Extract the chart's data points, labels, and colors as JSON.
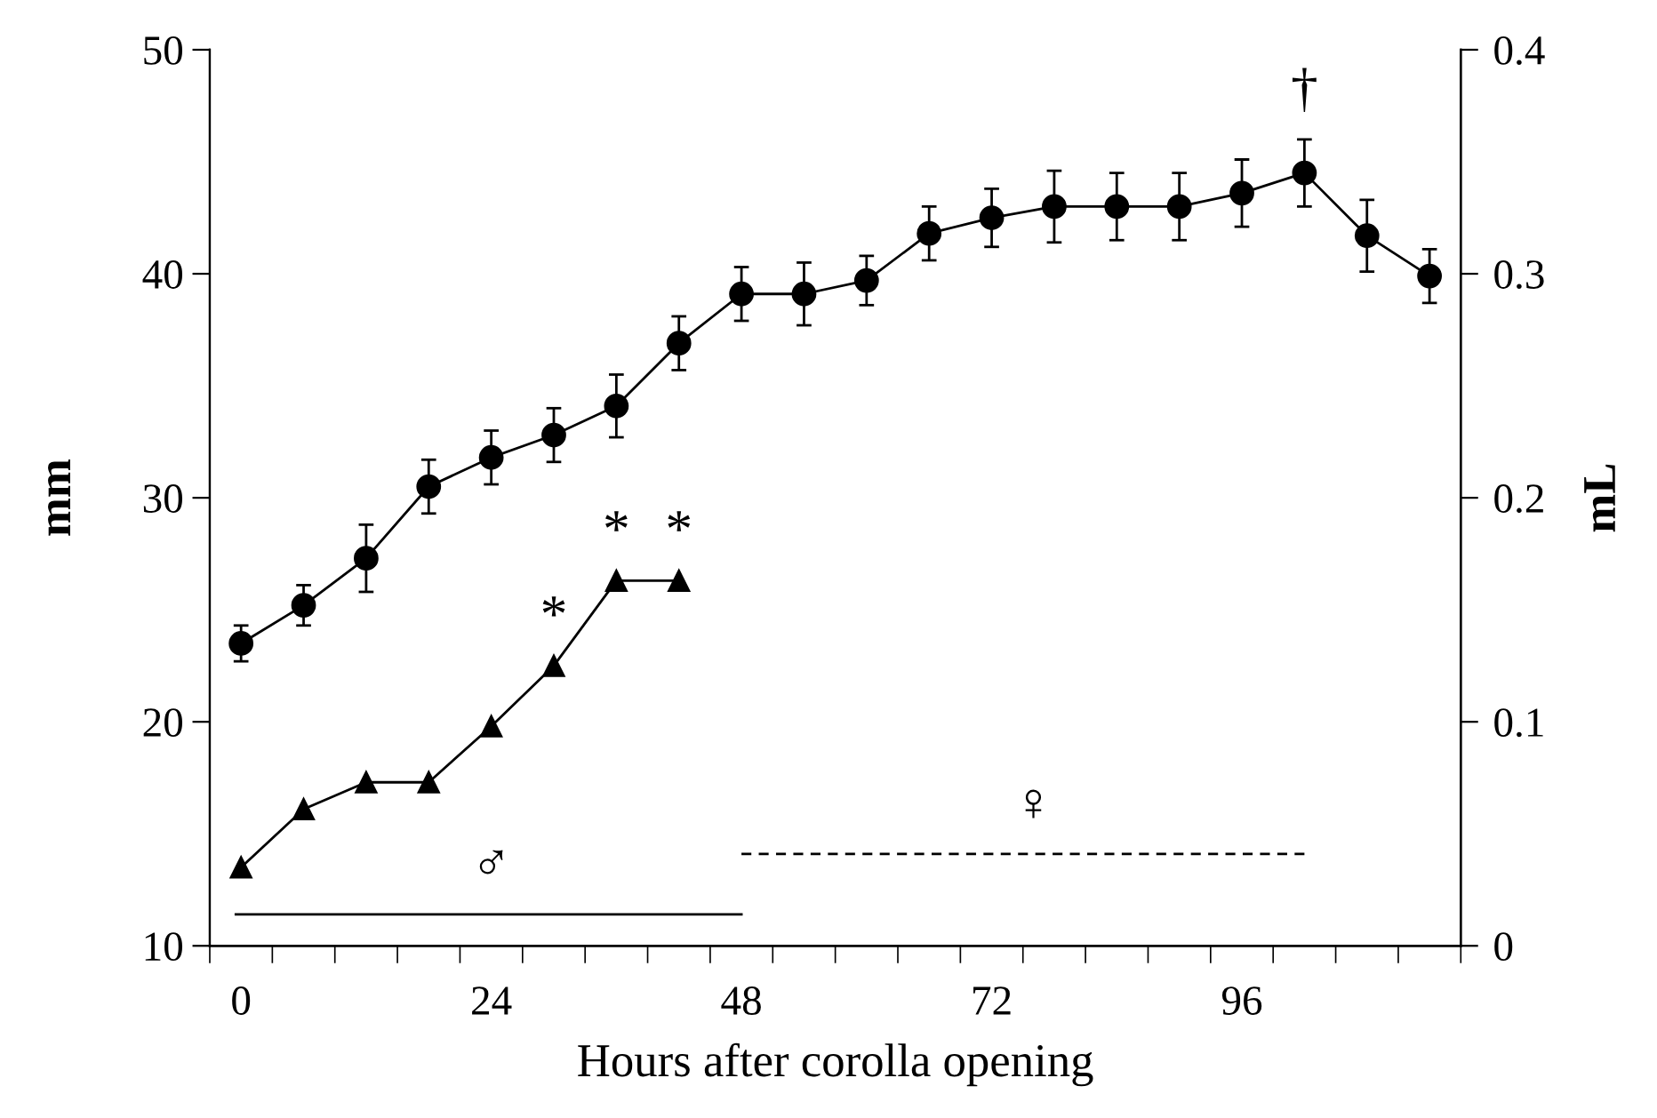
{
  "chart_data": {
    "type": "line",
    "xlabel": "Hours after corolla opening",
    "ylabel": "mm",
    "y2label": "mL",
    "x": [
      0,
      6,
      12,
      18,
      24,
      30,
      36,
      42,
      48,
      54,
      60,
      66,
      72,
      78,
      84,
      90,
      96,
      102,
      108,
      114
    ],
    "xlim": [
      -3,
      117
    ],
    "xticks": [
      {
        "value": -3,
        "label": null
      },
      {
        "value": 3,
        "label": null
      },
      {
        "value": 9,
        "label": null
      },
      {
        "value": 15,
        "label": null
      },
      {
        "value": 21,
        "label": null
      },
      {
        "value": 27,
        "label": null
      },
      {
        "value": 33,
        "label": null
      },
      {
        "value": 39,
        "label": null
      },
      {
        "value": 45,
        "label": null
      },
      {
        "value": 51,
        "label": null
      },
      {
        "value": 57,
        "label": null
      },
      {
        "value": 63,
        "label": null
      },
      {
        "value": 69,
        "label": null
      },
      {
        "value": 75,
        "label": null
      },
      {
        "value": 81,
        "label": null
      },
      {
        "value": 87,
        "label": null
      },
      {
        "value": 93,
        "label": null
      },
      {
        "value": 99,
        "label": null
      },
      {
        "value": 105,
        "label": null
      },
      {
        "value": 111,
        "label": null
      },
      {
        "value": 117,
        "label": null
      },
      0,
      24,
      48,
      72,
      96
    ],
    "ylim": [
      10,
      50
    ],
    "yticks": [
      10,
      20,
      30,
      40,
      50
    ],
    "y2lim": [
      0,
      0.4
    ],
    "y2ticks": [
      0,
      0.1,
      0.2,
      0.3,
      0.4
    ],
    "grid": false,
    "legend": false,
    "series": [
      {
        "color": "#000000",
        "marker": "circle",
        "values": [
          23.5,
          25.2,
          27.3,
          30.5,
          31.8,
          32.8,
          34.1,
          36.9,
          39.1,
          39.1,
          39.7,
          41.8,
          42.5,
          43.0,
          43.0,
          43.0,
          43.6,
          44.5,
          41.7,
          39.9
        ],
        "errors": [
          0.8,
          0.9,
          1.5,
          1.2,
          1.2,
          1.2,
          1.4,
          1.2,
          1.2,
          1.4,
          1.1,
          1.2,
          1.3,
          1.6,
          1.5,
          1.5,
          1.5,
          1.5,
          1.6,
          1.2
        ]
      },
      {
        "color": "#000000",
        "marker": "triangle",
        "axis": "y2",
        "x": [
          0,
          6,
          12,
          18,
          24,
          30,
          36,
          42
        ],
        "values": [
          0.035,
          0.061,
          0.073,
          0.073,
          0.098,
          0.125,
          0.163,
          0.163
        ]
      },
      {
        "color": "#000000",
        "marker": "none",
        "line_style": "solid",
        "x": [
          -0.5,
          48
        ],
        "values": [
          11.4,
          11.4
        ]
      },
      {
        "color": "#000000",
        "marker": "none",
        "line_style": "dashed",
        "x": [
          48,
          102
        ],
        "values": [
          14.1,
          14.1
        ]
      }
    ],
    "annotations": [
      {
        "text": "*",
        "x": 30,
        "y": 22.5
      },
      {
        "text": "*",
        "x": 36,
        "y": 26.3
      },
      {
        "text": "*",
        "x": 42,
        "y": 26.3
      },
      {
        "text": "†",
        "x": 102,
        "y": 44.5
      },
      {
        "text": "♂",
        "x": 24,
        "y": 11.4
      },
      {
        "text": "♀",
        "x": 76,
        "y": 14.1
      }
    ]
  }
}
